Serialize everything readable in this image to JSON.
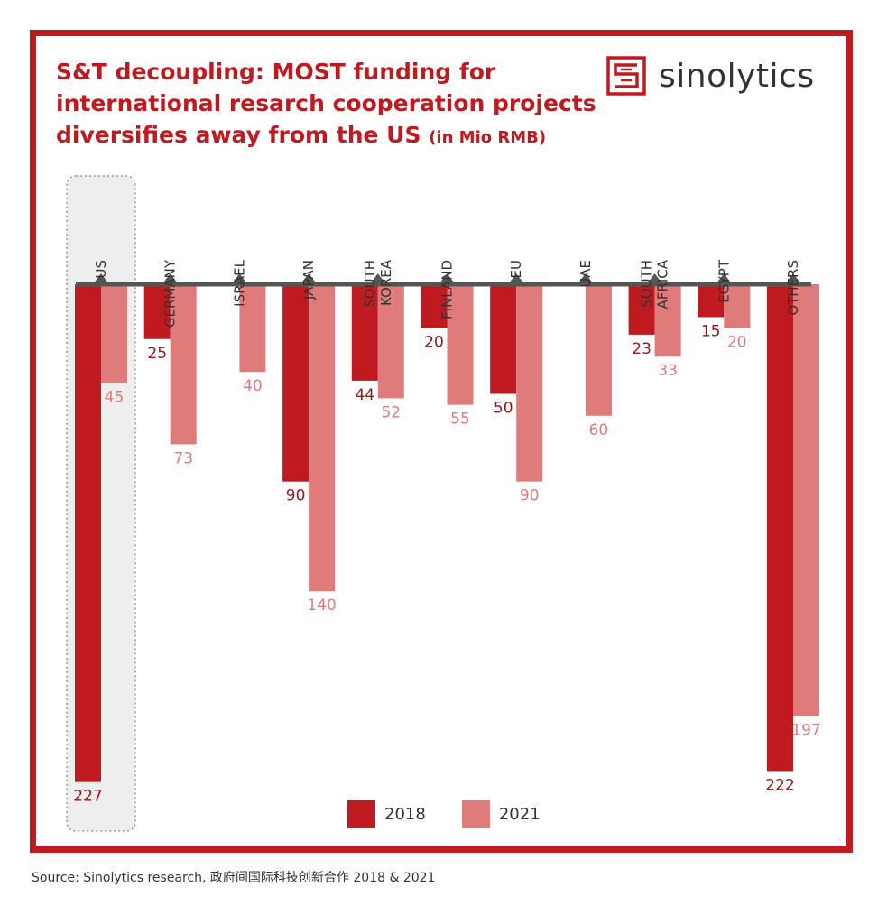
{
  "header": {
    "title_bold": "S&T decoupling:",
    "title_rest": " MOST funding for international resarch cooperation projects diversifies away from the US",
    "title_unit": "(in Mio RMB)"
  },
  "logo": {
    "text": "sinolytics",
    "icon": "sinolytics-square-s-logo"
  },
  "colors": {
    "frame": "#bf1a1f",
    "series_2018": "#bf1a1f",
    "series_2021": "#e07b7b",
    "axis": "#555555",
    "highlight_bg": "#eeeeee"
  },
  "chart_data": {
    "type": "bar",
    "orientation": "downward",
    "categories": [
      "US",
      "GERMANY",
      "ISRAEL",
      "JAPAN",
      "SOUTH KOREA",
      "FINLAND",
      "EU",
      "UAE",
      "SOUTH AFRICA",
      "EGYPT",
      "OTHERS"
    ],
    "highlight_category": "US",
    "series": [
      {
        "name": "2018",
        "values": [
          227,
          25,
          null,
          90,
          44,
          20,
          50,
          null,
          23,
          15,
          222
        ]
      },
      {
        "name": "2021",
        "values": [
          45,
          73,
          40,
          140,
          52,
          55,
          90,
          60,
          33,
          20,
          197
        ]
      }
    ],
    "legend_position": "bottom-center"
  },
  "source": "Source: Sinolytics research, 政府间国际科技创新合作 2018 & 2021"
}
